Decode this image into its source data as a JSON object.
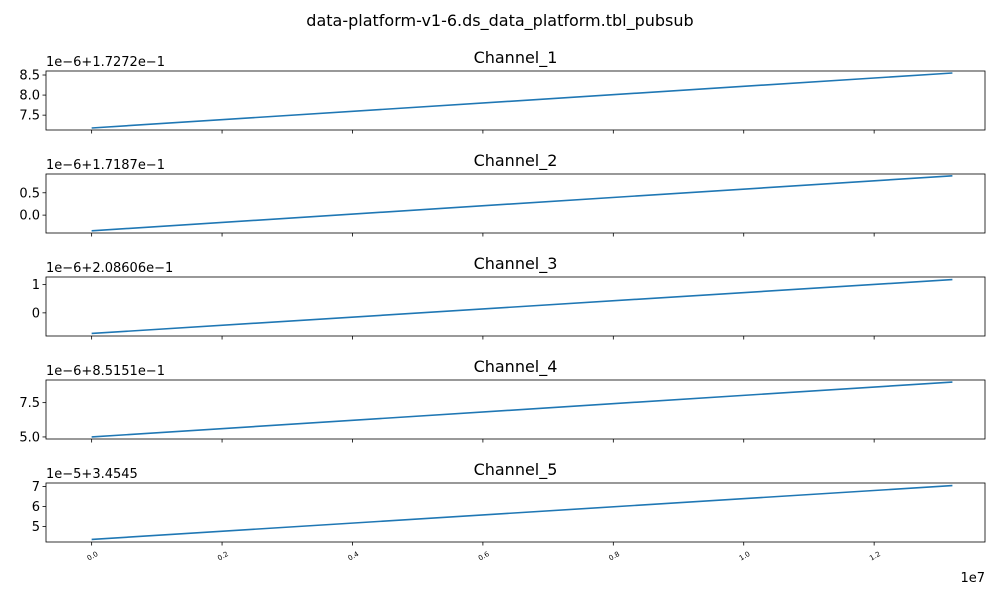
{
  "figure": {
    "title": "data-platform-v1-6.ds_data_platform.tbl_pubsub",
    "line_color": "#1f77b4"
  },
  "chart_data": [
    {
      "type": "line",
      "title": "Channel_1",
      "offset_text": "1e−6+1.7272e−1",
      "x": [
        0,
        13200000
      ],
      "y": [
        7.18,
        8.55
      ],
      "ylim": [
        7.13,
        8.6
      ],
      "yticks": [
        7.5,
        8.0,
        8.5
      ],
      "ytick_labels": [
        "7.5",
        "8.0",
        "8.5"
      ],
      "xlim": [
        -700000,
        13700000
      ],
      "grid": false
    },
    {
      "type": "line",
      "title": "Channel_2",
      "offset_text": "1e−6+1.7187e−1",
      "x": [
        0,
        13200000
      ],
      "y": [
        -0.35,
        0.88
      ],
      "ylim": [
        -0.4,
        0.92
      ],
      "yticks": [
        0.0,
        0.5
      ],
      "ytick_labels": [
        "0.0",
        "0.5"
      ],
      "xlim": [
        -700000,
        13700000
      ],
      "grid": false
    },
    {
      "type": "line",
      "title": "Channel_3",
      "offset_text": "1e−6+2.08606e−1",
      "x": [
        0,
        13200000
      ],
      "y": [
        -0.73,
        1.18
      ],
      "ylim": [
        -0.82,
        1.27
      ],
      "yticks": [
        0,
        1
      ],
      "ytick_labels": [
        "0",
        "1"
      ],
      "xlim": [
        -700000,
        13700000
      ],
      "grid": false
    },
    {
      "type": "line",
      "title": "Channel_4",
      "offset_text": "1e−6+8.5151e−1",
      "x": [
        0,
        13200000
      ],
      "y": [
        5.0,
        9.0
      ],
      "ylim": [
        4.85,
        9.15
      ],
      "yticks": [
        5.0,
        7.5
      ],
      "ytick_labels": [
        "5.0",
        "7.5"
      ],
      "xlim": [
        -700000,
        13700000
      ],
      "grid": false
    },
    {
      "type": "line",
      "title": "Channel_5",
      "offset_text": "1e−5+3.4545",
      "x": [
        0,
        13200000
      ],
      "y": [
        4.35,
        7.05
      ],
      "ylim": [
        4.22,
        7.18
      ],
      "yticks": [
        5,
        6,
        7
      ],
      "ytick_labels": [
        "5",
        "6",
        "7"
      ],
      "xlim": [
        -700000,
        13700000
      ],
      "xticks": [
        0,
        2000000,
        4000000,
        6000000,
        8000000,
        10000000,
        12000000
      ],
      "xtick_labels": [
        "0.0",
        "0.2",
        "0.4",
        "0.6",
        "0.8",
        "1.0",
        "1.2"
      ],
      "x_scale_label": "1e7",
      "grid": false
    }
  ]
}
